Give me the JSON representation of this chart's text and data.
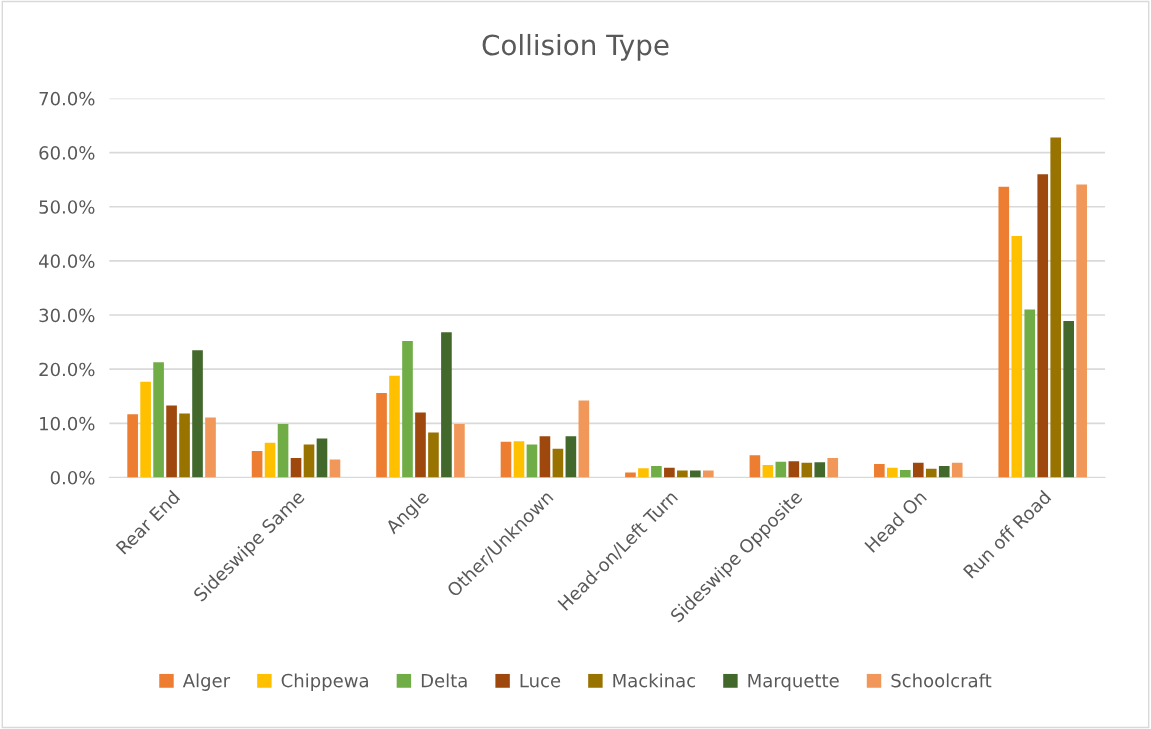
{
  "chart_data": {
    "type": "bar",
    "title": "Collision Type",
    "categories": [
      "Rear End",
      "Sideswipe Same",
      "Angle",
      "Other/Unknown",
      "Head-on/Left Turn",
      "Sideswipe Opposite",
      "Head On",
      "Run off Road"
    ],
    "series": [
      {
        "name": "Alger",
        "color": "#ed7d31",
        "values": [
          11.7,
          4.9,
          15.6,
          6.6,
          0.9,
          4.1,
          2.5,
          53.7
        ]
      },
      {
        "name": "Chippewa",
        "color": "#ffc000",
        "values": [
          17.7,
          6.4,
          18.8,
          6.7,
          1.7,
          2.3,
          1.8,
          44.6
        ]
      },
      {
        "name": "Delta",
        "color": "#70ad47",
        "values": [
          21.3,
          9.9,
          25.2,
          6.1,
          2.1,
          2.9,
          1.4,
          31.0
        ]
      },
      {
        "name": "Luce",
        "color": "#9e480e",
        "values": [
          13.3,
          3.6,
          12.0,
          7.6,
          1.8,
          3.0,
          2.7,
          56.0
        ]
      },
      {
        "name": "Mackinac",
        "color": "#997300",
        "values": [
          11.8,
          6.1,
          8.3,
          5.3,
          1.3,
          2.7,
          1.6,
          62.8
        ]
      },
      {
        "name": "Marquette",
        "color": "#43682b",
        "values": [
          23.5,
          7.2,
          26.8,
          7.6,
          1.3,
          2.8,
          2.1,
          28.9
        ]
      },
      {
        "name": "Schoolcraft",
        "color": "#f1975a",
        "values": [
          11.1,
          3.3,
          9.9,
          14.2,
          1.3,
          3.6,
          2.7,
          54.1
        ]
      }
    ],
    "ylim": [
      0,
      70
    ],
    "yticks": [
      {
        "value": 0,
        "label": "0.0%"
      },
      {
        "value": 10,
        "label": "10.0%"
      },
      {
        "value": 20,
        "label": "20.0%"
      },
      {
        "value": 30,
        "label": "30.0%"
      },
      {
        "value": 40,
        "label": "40.0%"
      },
      {
        "value": 50,
        "label": "50.0%"
      },
      {
        "value": 60,
        "label": "60.0%"
      },
      {
        "value": 70,
        "label": "70.0%"
      }
    ],
    "grid": "y",
    "legend": "bottom"
  }
}
